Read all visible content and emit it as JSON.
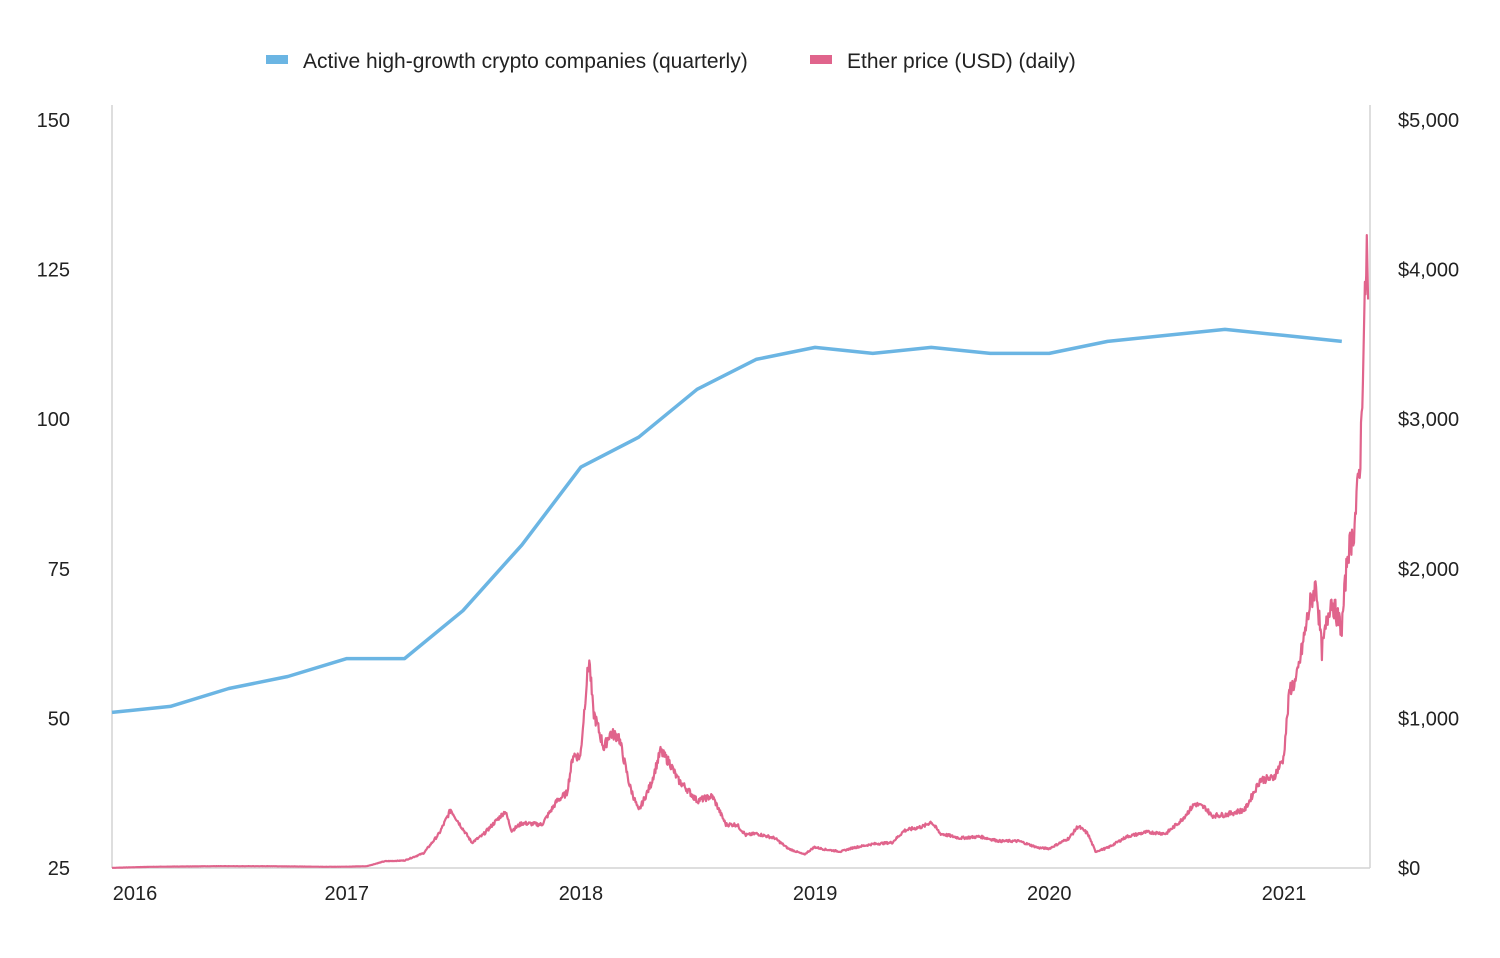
{
  "chart_data": {
    "type": "line",
    "title": "",
    "legend": {
      "placement": "top-center",
      "entries": [
        {
          "label": "Active high-growth crypto companies (quarterly)",
          "color": "#6bb5e3"
        },
        {
          "label": "Ether price (USD) (daily)",
          "color": "#e0648c"
        }
      ]
    },
    "x_axis": {
      "type": "date",
      "range": [
        "2016-01-01",
        "2021-05-15"
      ],
      "tick_labels": [
        "2016",
        "2017",
        "2018",
        "2019",
        "2020",
        "2021"
      ],
      "tick_dates": [
        "2016-01-01",
        "2017-01-01",
        "2018-01-01",
        "2019-01-01",
        "2020-01-01",
        "2021-01-01"
      ]
    },
    "y_left": {
      "range": [
        25,
        150
      ],
      "ticks": [
        25,
        50,
        75,
        100,
        125,
        150
      ],
      "tick_labels": [
        "25",
        "50",
        "75",
        "100",
        "125",
        "150"
      ]
    },
    "y_right": {
      "range": [
        0,
        5000
      ],
      "ticks": [
        0,
        1000,
        2000,
        3000,
        4000,
        5000
      ],
      "tick_labels": [
        "$0",
        "$1,000",
        "$2,000",
        "$3,000",
        "$4,000",
        "$5,000"
      ]
    },
    "grid": false,
    "series": [
      {
        "name": "Active high-growth crypto companies (quarterly)",
        "axis": "left",
        "color": "#6bb5e3",
        "points": [
          [
            "2016-01-01",
            51
          ],
          [
            "2016-04-01",
            52
          ],
          [
            "2016-07-01",
            55
          ],
          [
            "2016-10-01",
            57
          ],
          [
            "2017-01-01",
            60
          ],
          [
            "2017-04-01",
            60
          ],
          [
            "2017-07-01",
            68
          ],
          [
            "2017-10-01",
            79
          ],
          [
            "2018-01-01",
            92
          ],
          [
            "2018-04-01",
            97
          ],
          [
            "2018-07-01",
            105
          ],
          [
            "2018-10-01",
            110
          ],
          [
            "2019-01-01",
            112
          ],
          [
            "2019-04-01",
            111
          ],
          [
            "2019-07-01",
            112
          ],
          [
            "2019-10-01",
            111
          ],
          [
            "2020-01-01",
            111
          ],
          [
            "2020-04-01",
            113
          ],
          [
            "2020-07-01",
            114
          ],
          [
            "2020-10-01",
            115
          ],
          [
            "2021-01-01",
            114
          ],
          [
            "2021-04-01",
            113
          ]
        ]
      },
      {
        "name": "Ether price (USD) (daily)",
        "axis": "right",
        "color": "#e0648c",
        "points": [
          [
            "2016-01-01",
            1
          ],
          [
            "2016-03-01",
            8
          ],
          [
            "2016-06-01",
            12
          ],
          [
            "2016-09-01",
            12
          ],
          [
            "2016-12-01",
            8
          ],
          [
            "2017-01-01",
            9
          ],
          [
            "2017-02-01",
            12
          ],
          [
            "2017-03-01",
            45
          ],
          [
            "2017-04-01",
            50
          ],
          [
            "2017-05-01",
            100
          ],
          [
            "2017-05-25",
            230
          ],
          [
            "2017-06-12",
            390
          ],
          [
            "2017-06-25",
            300
          ],
          [
            "2017-07-15",
            170
          ],
          [
            "2017-08-01",
            220
          ],
          [
            "2017-08-25",
            330
          ],
          [
            "2017-09-05",
            380
          ],
          [
            "2017-09-15",
            250
          ],
          [
            "2017-10-01",
            300
          ],
          [
            "2017-11-01",
            290
          ],
          [
            "2017-11-25",
            450
          ],
          [
            "2017-12-10",
            500
          ],
          [
            "2017-12-20",
            760
          ],
          [
            "2017-12-31",
            740
          ],
          [
            "2018-01-10",
            1250
          ],
          [
            "2018-01-14",
            1390
          ],
          [
            "2018-01-20",
            1050
          ],
          [
            "2018-02-06",
            800
          ],
          [
            "2018-02-15",
            900
          ],
          [
            "2018-03-01",
            880
          ],
          [
            "2018-03-18",
            550
          ],
          [
            "2018-04-01",
            380
          ],
          [
            "2018-04-20",
            560
          ],
          [
            "2018-05-05",
            780
          ],
          [
            "2018-05-20",
            700
          ],
          [
            "2018-06-01",
            590
          ],
          [
            "2018-06-15",
            530
          ],
          [
            "2018-07-01",
            450
          ],
          [
            "2018-07-25",
            480
          ],
          [
            "2018-08-15",
            290
          ],
          [
            "2018-09-01",
            290
          ],
          [
            "2018-09-15",
            220
          ],
          [
            "2018-10-01",
            230
          ],
          [
            "2018-10-30",
            200
          ],
          [
            "2018-11-20",
            130
          ],
          [
            "2018-12-15",
            90
          ],
          [
            "2018-12-31",
            140
          ],
          [
            "2019-01-15",
            125
          ],
          [
            "2019-02-10",
            110
          ],
          [
            "2019-03-01",
            135
          ],
          [
            "2019-04-01",
            160
          ],
          [
            "2019-05-01",
            170
          ],
          [
            "2019-05-20",
            250
          ],
          [
            "2019-06-20",
            280
          ],
          [
            "2019-07-01",
            310
          ],
          [
            "2019-07-15",
            230
          ],
          [
            "2019-08-15",
            200
          ],
          [
            "2019-09-15",
            210
          ],
          [
            "2019-10-15",
            180
          ],
          [
            "2019-11-15",
            180
          ],
          [
            "2019-12-15",
            135
          ],
          [
            "2020-01-01",
            130
          ],
          [
            "2020-02-01",
            200
          ],
          [
            "2020-02-15",
            280
          ],
          [
            "2020-03-01",
            230
          ],
          [
            "2020-03-13",
            110
          ],
          [
            "2020-04-01",
            135
          ],
          [
            "2020-05-01",
            210
          ],
          [
            "2020-06-01",
            240
          ],
          [
            "2020-07-01",
            230
          ],
          [
            "2020-07-25",
            320
          ],
          [
            "2020-08-15",
            430
          ],
          [
            "2020-09-01",
            400
          ],
          [
            "2020-09-10",
            350
          ],
          [
            "2020-10-01",
            355
          ],
          [
            "2020-11-01",
            390
          ],
          [
            "2020-11-25",
            590
          ],
          [
            "2020-12-15",
            600
          ],
          [
            "2020-12-31",
            730
          ],
          [
            "2021-01-10",
            1200
          ],
          [
            "2021-01-20",
            1250
          ],
          [
            "2021-02-10",
            1750
          ],
          [
            "2021-02-20",
            1900
          ],
          [
            "2021-03-01",
            1450
          ],
          [
            "2021-03-15",
            1800
          ],
          [
            "2021-04-01",
            1600
          ],
          [
            "2021-04-10",
            2100
          ],
          [
            "2021-04-20",
            2250
          ],
          [
            "2021-04-30",
            2750
          ],
          [
            "2021-05-05",
            3500
          ],
          [
            "2021-05-10",
            4150
          ],
          [
            "2021-05-12",
            3800
          ]
        ]
      }
    ]
  }
}
